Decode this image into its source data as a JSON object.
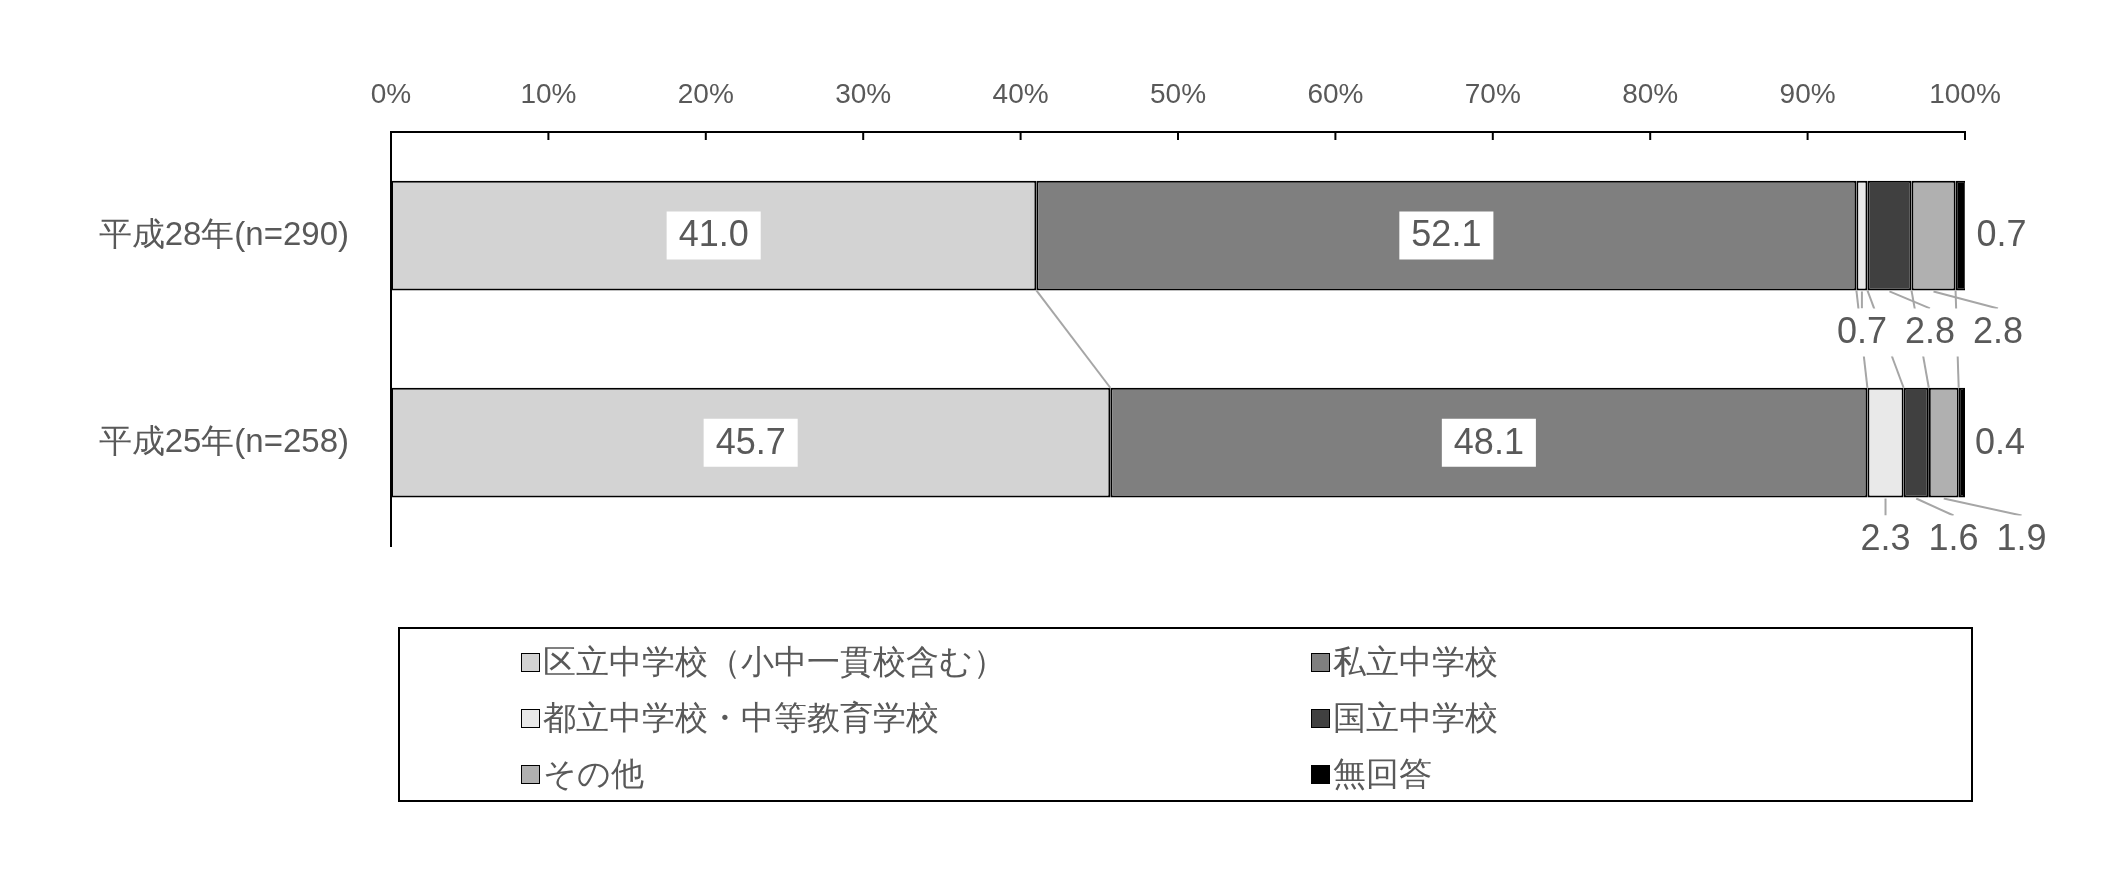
{
  "chart_data": {
    "type": "bar",
    "orientation": "horizontal",
    "stacked": true,
    "categories": [
      "平成28年(n=290)",
      "平成25年(n=258)"
    ],
    "series": [
      {
        "name": "区立中学校（小中一貫校含む）",
        "color": "#d3d3d3",
        "values": [
          41.0,
          45.7
        ],
        "value_labels": [
          "41.0",
          "45.7"
        ]
      },
      {
        "name": "私立中学校",
        "color": "#7f7f7f",
        "values": [
          52.1,
          48.1
        ],
        "value_labels": [
          "52.1",
          "48.1"
        ]
      },
      {
        "name": "都立中学校・中等教育学校",
        "color": "#e9e9e9",
        "values": [
          0.7,
          2.3
        ],
        "value_labels": [
          "0.7",
          "2.3"
        ]
      },
      {
        "name": "国立中学校",
        "color": "#404040",
        "values": [
          2.8,
          1.6
        ],
        "value_labels": [
          "2.8",
          "1.6"
        ]
      },
      {
        "name": "その他",
        "color": "#b0b0b0",
        "values": [
          2.8,
          1.9
        ],
        "value_labels": [
          "2.8",
          "1.9"
        ]
      },
      {
        "name": "無回答",
        "color": "#000000",
        "values": [
          0.7,
          0.4
        ],
        "value_labels": [
          "0.7",
          "0.4"
        ]
      }
    ],
    "xlim": [
      0,
      100
    ],
    "xticks": [
      {
        "value": 0,
        "label": "0%"
      },
      {
        "value": 10,
        "label": "10%"
      },
      {
        "value": 20,
        "label": "20%"
      },
      {
        "value": 30,
        "label": "30%"
      },
      {
        "value": 40,
        "label": "40%"
      },
      {
        "value": 50,
        "label": "50%"
      },
      {
        "value": 60,
        "label": "60%"
      },
      {
        "value": 70,
        "label": "70%"
      },
      {
        "value": 80,
        "label": "80%"
      },
      {
        "value": 90,
        "label": "90%"
      },
      {
        "value": 100,
        "label": "100%"
      }
    ],
    "legend": "bottom"
  }
}
